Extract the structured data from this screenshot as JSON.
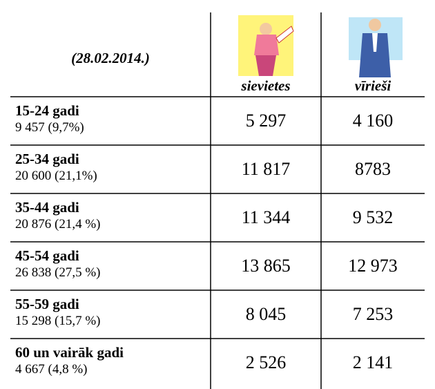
{
  "table": {
    "date": "(28.02.2014.)",
    "columns": [
      "sievietes",
      "vīrieši"
    ],
    "rows": [
      [
        "15-24 gadi",
        "9 457 (9,7%)",
        "5 297",
        "4 160"
      ],
      [
        "25-34 gadi",
        "20 600 (21,1%)",
        "11 817",
        "8783"
      ],
      [
        "35-44 gadi",
        "20 876 (21,4 %)",
        "11 344",
        "9 532"
      ],
      [
        "45-54 gadi",
        "26 838 (27,5 %)",
        "13 865",
        "12 973"
      ],
      [
        "55-59 gadi",
        "15 298 (15,7 %)",
        "8 045",
        "7 253"
      ],
      [
        "60 un vairāk gadi",
        "4 667 (4,8 %)",
        "2 526",
        "2 141"
      ]
    ]
  }
}
